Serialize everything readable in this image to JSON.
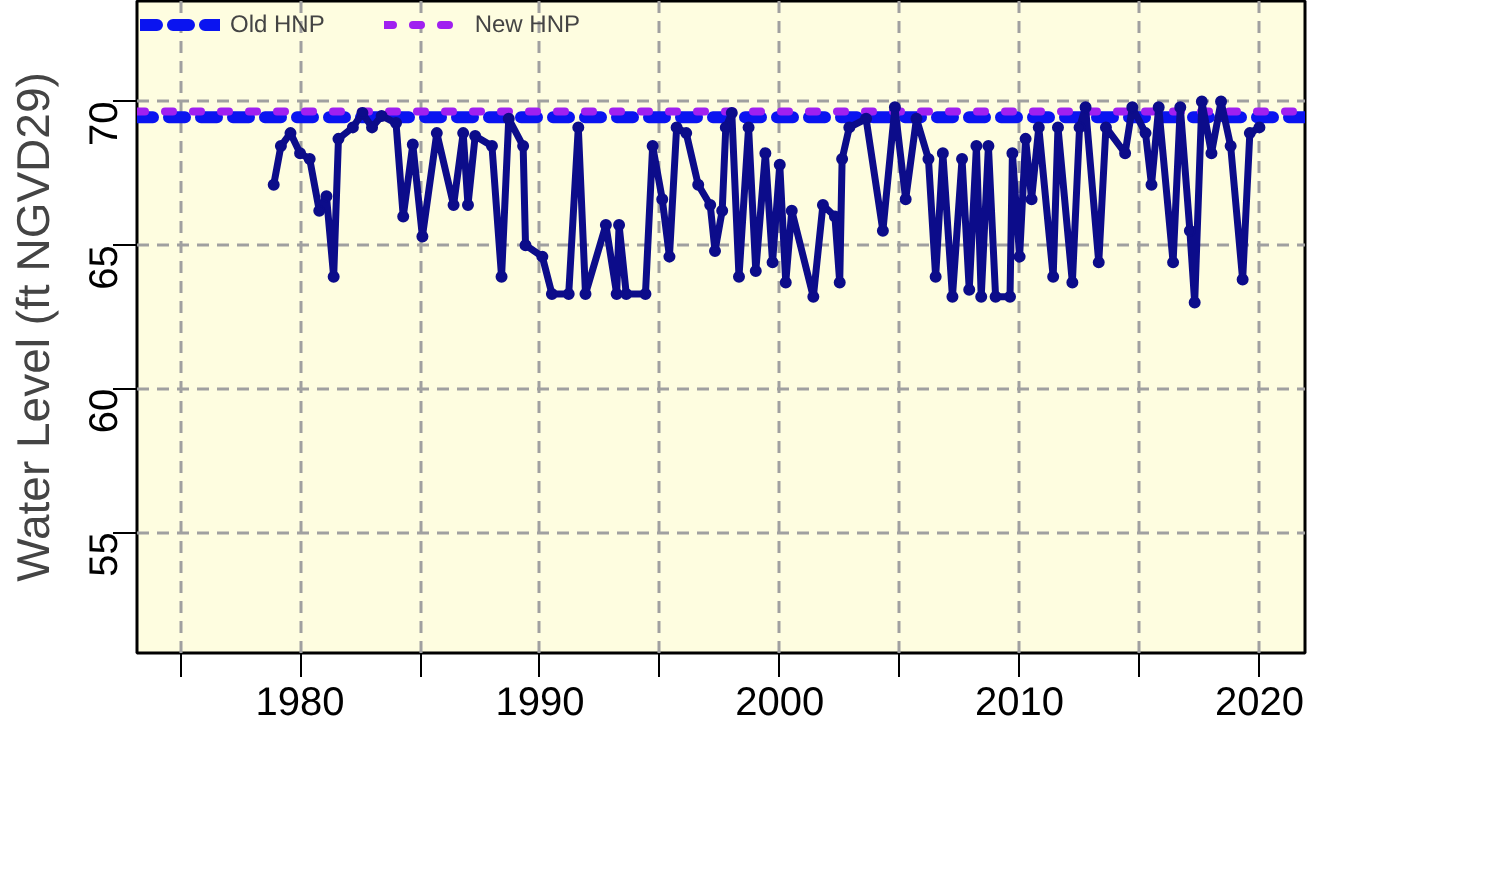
{
  "chart_data": {
    "type": "line",
    "ylabel": "Water Level (ft NGVD29)",
    "xlim": [
      1973.2,
      2021.9
    ],
    "ylim": [
      50.8,
      73.5
    ],
    "xticks": [
      {
        "value": 1975,
        "label": null
      },
      1980,
      {
        "value": 1985,
        "label": null
      },
      1990,
      {
        "value": 1995,
        "label": null
      },
      2000,
      {
        "value": 2005,
        "label": null
      },
      2010,
      {
        "value": 2015,
        "label": null
      },
      2020
    ],
    "yticks": [
      55,
      60,
      65,
      70
    ],
    "grid": true,
    "legend": "top",
    "marker": "circle",
    "line_style": "solid",
    "x": [
      1978.9,
      1979.2,
      1979.6,
      1980.0,
      1980.4,
      1980.8,
      1981.1,
      1981.4,
      1981.6,
      1982.2,
      1982.6,
      1983.0,
      1983.4,
      1984.0,
      1984.3,
      1984.7,
      1985.1,
      1985.7,
      1986.4,
      1986.8,
      1987.0,
      1987.3,
      1988.0,
      1988.4,
      1988.7,
      1989.3,
      1989.4,
      1990.1,
      1990.5,
      1991.2,
      1991.6,
      1991.9,
      1992.75,
      1993.2,
      1993.3,
      1993.6,
      1994.4,
      1994.7,
      1995.1,
      1995.4,
      1995.7,
      1996.1,
      1996.6,
      1997.1,
      1997.3,
      1997.6,
      1997.75,
      1998.0,
      1998.3,
      1998.7,
      1999.0,
      1999.4,
      1999.7,
      2000.0,
      2000.25,
      2000.5,
      2001.4,
      2001.8,
      2002.3,
      2002.5,
      2002.6,
      2002.9,
      2003.6,
      2004.3,
      2004.8,
      2005.25,
      2005.7,
      2006.2,
      2006.5,
      2006.8,
      2007.2,
      2007.6,
      2007.9,
      2008.2,
      2008.4,
      2008.7,
      2009.0,
      2009.6,
      2009.7,
      2010.0,
      2010.25,
      2010.5,
      2010.8,
      2011.4,
      2011.6,
      2012.2,
      2012.5,
      2012.75,
      2013.3,
      2013.6,
      2014.4,
      2014.7,
      2015.25,
      2015.5,
      2015.8,
      2016.4,
      2016.7,
      2017.1,
      2017.3,
      2017.6,
      2018.0,
      2018.4,
      2018.8,
      2019.3,
      2019.6,
      2020.0
    ],
    "series": [
      {
        "color": "#0c0c8a",
        "values": [
          67.1,
          68.45,
          68.9,
          68.2,
          68.0,
          66.2,
          66.7,
          63.9,
          68.7,
          69.1,
          69.6,
          69.1,
          69.5,
          69.25,
          66.0,
          68.5,
          65.3,
          68.9,
          66.4,
          68.9,
          66.4,
          68.8,
          68.45,
          63.9,
          69.4,
          68.45,
          65.0,
          64.6,
          63.3,
          63.3,
          69.1,
          63.3,
          65.7,
          63.3,
          65.7,
          63.3,
          63.3,
          68.45,
          66.6,
          64.6,
          69.1,
          68.9,
          67.1,
          66.4,
          64.8,
          66.2,
          69.1,
          69.6,
          63.9,
          69.1,
          64.1,
          68.2,
          64.4,
          67.8,
          63.7,
          66.2,
          63.2,
          66.4,
          66.0,
          63.7,
          68.0,
          69.1,
          69.4,
          65.5,
          69.8,
          66.6,
          69.4,
          68.0,
          63.9,
          68.2,
          63.2,
          68.0,
          63.45,
          68.45,
          63.2,
          68.45,
          63.2,
          63.2,
          68.2,
          64.6,
          68.7,
          66.6,
          69.1,
          63.9,
          69.1,
          63.7,
          69.1,
          69.8,
          64.4,
          69.1,
          68.2,
          69.8,
          68.9,
          67.1,
          69.8,
          64.4,
          69.8,
          65.5,
          63.0,
          70.0,
          68.2,
          70.0,
          68.45,
          63.8,
          68.9,
          69.1
        ]
      }
    ],
    "ref_lines": [
      {
        "axis": "y",
        "value": 69.45,
        "label": "Old HNP",
        "color": "#0a14f0",
        "line_style": "dashed"
      },
      {
        "axis": "y",
        "value": 69.65,
        "label": "New HNP",
        "color": "#a020f0",
        "line_style": "dotted"
      }
    ]
  }
}
